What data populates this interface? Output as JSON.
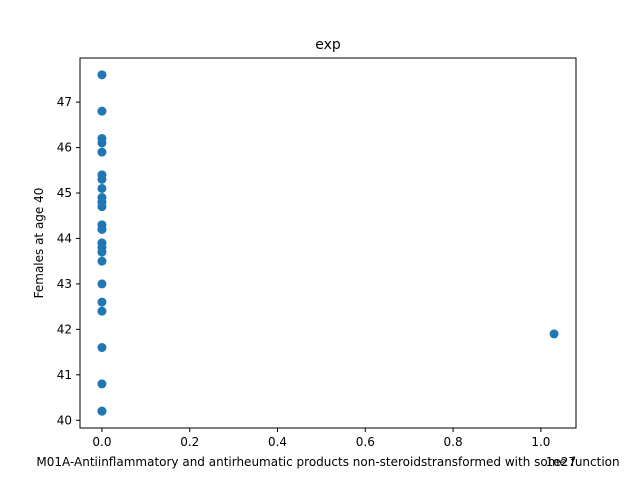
{
  "chart_data": {
    "type": "scatter",
    "title": "exp",
    "xlabel": "M01A-Antiinflammatory and antirheumatic products non-steroidstransformed with some function",
    "ylabel": "Females at age 40",
    "x_offset_label": "1e27",
    "x_scale_factor": 1e+27,
    "xlim": [
      -0.05,
      1.08
    ],
    "ylim": [
      39.83,
      47.97
    ],
    "xticks": [
      0.0,
      0.2,
      0.4,
      0.6,
      0.8,
      1.0
    ],
    "xtick_labels": [
      "0.0",
      "0.2",
      "0.4",
      "0.6",
      "0.8",
      "1.0"
    ],
    "yticks": [
      40,
      41,
      42,
      43,
      44,
      45,
      46,
      47
    ],
    "ytick_labels": [
      "40",
      "41",
      "42",
      "43",
      "44",
      "45",
      "46",
      "47"
    ],
    "grid": false,
    "marker_color": "#1f77b4",
    "x": [
      0,
      0,
      0,
      0,
      0,
      0,
      0,
      0,
      0,
      0,
      0,
      0,
      0,
      0,
      0,
      0,
      0,
      0,
      0,
      0,
      0,
      0,
      0,
      0,
      0,
      0,
      1.03
    ],
    "y": [
      47.6,
      46.8,
      46.2,
      46.1,
      45.9,
      45.4,
      45.3,
      45.1,
      44.9,
      44.8,
      44.7,
      44.3,
      44.2,
      43.9,
      43.8,
      43.7,
      43.5,
      43.0,
      42.6,
      42.4,
      41.6,
      40.8,
      40.2,
      40.2,
      44.2,
      43.9,
      41.9
    ]
  }
}
